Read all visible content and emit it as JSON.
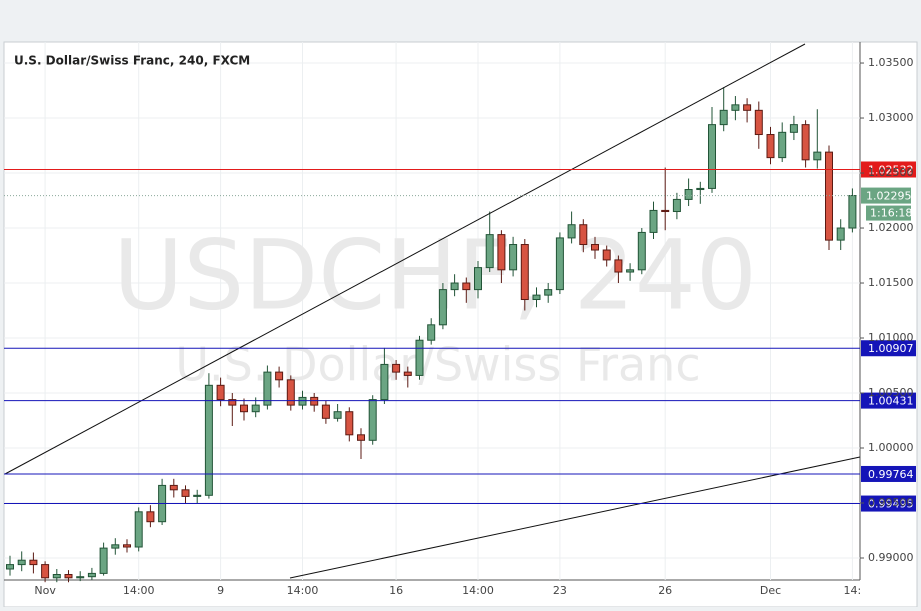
{
  "chart_data": {
    "type": "candlestick",
    "title": "U.S. Dollar/Swiss Franc, 240, FXCM",
    "watermark": "USDCHF, 240",
    "watermark_subtitle": "U.S. Dollar/Swiss Franc",
    "categories": [
      null,
      null,
      null,
      "Nov",
      null,
      null,
      null,
      null,
      null,
      null,
      null,
      "14:00",
      null,
      null,
      null,
      null,
      null,
      null,
      "9",
      null,
      null,
      null,
      null,
      null,
      null,
      "14:00",
      null,
      null,
      null,
      null,
      null,
      null,
      null,
      "16",
      null,
      null,
      null,
      null,
      null,
      null,
      "14:00",
      null,
      null,
      null,
      null,
      null,
      null,
      "23",
      null,
      null,
      null,
      null,
      null,
      null,
      null,
      null,
      "26",
      null,
      null,
      null,
      null,
      null,
      null,
      null,
      null,
      "Dec",
      null,
      null,
      null,
      null,
      null,
      null,
      "14:"
    ],
    "open": [
      0.989,
      0.9894,
      0.9898,
      0.9894,
      0.9882,
      0.9885,
      0.9882,
      0.9883,
      0.9886,
      0.9909,
      0.9912,
      0.991,
      0.9942,
      0.9933,
      0.9966,
      0.9962,
      0.9956,
      0.9957,
      1.0057,
      1.0044,
      1.0039,
      1.0033,
      1.0039,
      1.0069,
      1.0062,
      1.0039,
      1.0046,
      1.0039,
      1.0027,
      1.0033,
      1.0012,
      1.0007,
      1.0044,
      1.0076,
      1.0069,
      1.0066,
      1.0098,
      1.0112,
      1.0144,
      1.015,
      1.0144,
      1.0164,
      1.0194,
      1.0162,
      1.0185,
      1.0135,
      1.0139,
      1.0144,
      1.0191,
      1.0203,
      1.0185,
      1.018,
      1.0171,
      1.016,
      1.0162,
      1.0196,
      1.0216,
      1.0215,
      1.0226,
      1.0235,
      1.0236,
      1.0294,
      1.0307,
      1.0312,
      1.0307,
      1.0285,
      1.0264,
      1.0287,
      1.0294,
      1.0262,
      1.0269,
      1.0189,
      1.02
    ],
    "high": [
      0.9902,
      0.9906,
      0.9905,
      0.9897,
      0.989,
      0.9889,
      0.9888,
      0.9891,
      0.9914,
      0.9918,
      0.9917,
      0.9946,
      0.9948,
      0.9972,
      0.9972,
      0.9966,
      0.9962,
      1.0068,
      1.0064,
      1.005,
      1.0045,
      1.0046,
      1.0075,
      1.0074,
      1.0066,
      1.0052,
      1.005,
      1.0043,
      1.004,
      1.0037,
      1.0018,
      1.0048,
      1.0091,
      1.008,
      1.0074,
      1.0102,
      1.0118,
      1.015,
      1.0158,
      1.0155,
      1.017,
      1.0215,
      1.0198,
      1.0192,
      1.019,
      1.0146,
      1.015,
      1.0196,
      1.0215,
      1.0208,
      1.0192,
      1.0184,
      1.0175,
      1.0168,
      1.02,
      1.0224,
      1.0255,
      1.0232,
      1.0245,
      1.0242,
      1.031,
      1.0328,
      1.032,
      1.0318,
      1.0315,
      1.0292,
      1.0296,
      1.0302,
      1.0298,
      1.0308,
      1.0275,
      1.0208,
      1.0236
    ],
    "low": [
      0.9884,
      0.9888,
      0.9886,
      0.9878,
      0.9878,
      0.9878,
      0.9879,
      0.988,
      0.9884,
      0.9903,
      0.9905,
      0.9906,
      0.9928,
      0.993,
      0.9955,
      0.995,
      0.995,
      0.9954,
      1.0038,
      1.002,
      1.0025,
      1.0028,
      1.0035,
      1.0055,
      1.0034,
      1.0035,
      1.0033,
      1.0022,
      1.0024,
      1.0006,
      0.999,
      1.0003,
      1.004,
      1.0062,
      1.0055,
      1.0062,
      1.0094,
      1.0108,
      1.0138,
      1.0132,
      1.0136,
      1.016,
      1.015,
      1.0156,
      1.0125,
      1.0128,
      1.0132,
      1.014,
      1.0186,
      1.0178,
      1.0172,
      1.0165,
      1.015,
      1.0152,
      1.0158,
      1.019,
      1.0198,
      1.0208,
      1.022,
      1.0222,
      1.0232,
      1.0288,
      1.0298,
      1.0296,
      1.0272,
      1.0258,
      1.026,
      1.028,
      1.0255,
      1.0254,
      1.018,
      1.018,
      1.0196
    ],
    "close": [
      0.9894,
      0.9898,
      0.9894,
      0.9882,
      0.9885,
      0.9882,
      0.9883,
      0.9886,
      0.9909,
      0.9912,
      0.991,
      0.9942,
      0.9933,
      0.9966,
      0.9962,
      0.9956,
      0.9957,
      1.0057,
      1.0044,
      1.0039,
      1.0033,
      1.0039,
      1.0069,
      1.0062,
      1.0039,
      1.0046,
      1.0039,
      1.0027,
      1.0033,
      1.0012,
      1.0007,
      1.0044,
      1.0076,
      1.0069,
      1.0066,
      1.0098,
      1.0112,
      1.0144,
      1.015,
      1.0144,
      1.0164,
      1.0194,
      1.0162,
      1.0185,
      1.0135,
      1.0139,
      1.0144,
      1.0191,
      1.0203,
      1.0185,
      1.018,
      1.0171,
      1.016,
      1.0162,
      1.0196,
      1.0216,
      1.0215,
      1.0226,
      1.0235,
      1.0236,
      1.0294,
      1.0307,
      1.0312,
      1.0307,
      1.0285,
      1.0264,
      1.0287,
      1.0294,
      1.0262,
      1.0269,
      1.0189,
      1.02,
      1.02295
    ],
    "up_color": "#6ba583",
    "down_color": "#d75442",
    "ylim": [
      0.988,
      1.03673
    ],
    "yticks": [
      {
        "value": 0.99,
        "label": "0.99000"
      },
      {
        "value": 0.995,
        "label": "0.99500"
      },
      {
        "value": 1.0,
        "label": "1.00000"
      },
      {
        "value": 1.005,
        "label": "1.00500"
      },
      {
        "value": 1.01,
        "label": "1.01000"
      },
      {
        "value": 1.015,
        "label": "1.01500"
      },
      {
        "value": 1.02,
        "label": "1.02000"
      },
      {
        "value": 1.025,
        "label": "1.02500"
      },
      {
        "value": 1.03,
        "label": "1.03000"
      },
      {
        "value": 1.035,
        "label": "1.03500"
      }
    ],
    "grid": true,
    "levels": [
      {
        "value": 1.02532,
        "label": "1.02532",
        "color": "#e31b1b"
      },
      {
        "value": 1.00907,
        "label": "1.00907",
        "color": "#1515b8"
      },
      {
        "value": 1.00431,
        "label": "1.00431",
        "color": "#1515b8"
      },
      {
        "value": 0.99764,
        "label": "0.99764",
        "color": "#1515b8"
      },
      {
        "value": 0.99495,
        "label": "0.99495",
        "color": "#1515b8"
      }
    ],
    "last_price": {
      "value": 1.02295,
      "label": "1.02295",
      "countdown": "1:16:18",
      "color": "#6ba583"
    }
  }
}
